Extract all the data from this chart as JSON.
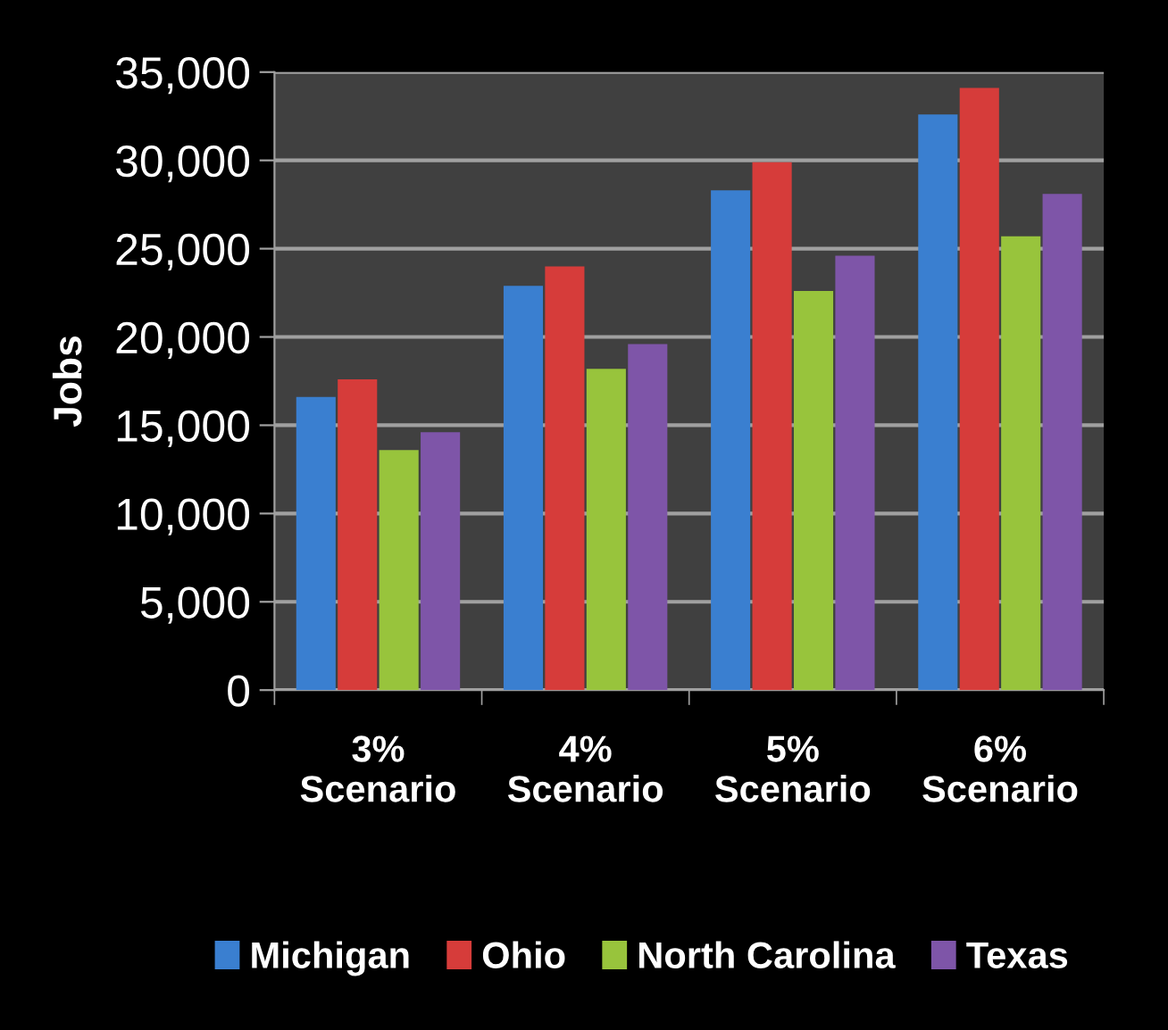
{
  "chart_data": {
    "type": "bar",
    "ylabel": "Jobs",
    "categories": [
      "3%\nScenario",
      "4%\nScenario",
      "5%\nScenario",
      "6%\nScenario"
    ],
    "series": [
      {
        "name": "Michigan",
        "color": "#3a7fd0",
        "values": [
          16600,
          22900,
          28300,
          32600
        ]
      },
      {
        "name": "Ohio",
        "color": "#d63c3a",
        "values": [
          17600,
          24000,
          29900,
          34100
        ]
      },
      {
        "name": "North Carolina",
        "color": "#98c43c",
        "values": [
          13600,
          18200,
          22600,
          25700
        ]
      },
      {
        "name": "Texas",
        "color": "#7e55a8",
        "values": [
          14600,
          19600,
          24600,
          28100
        ]
      }
    ],
    "ylim": [
      0,
      35000
    ],
    "yticks": [
      {
        "value": 0,
        "label": "0"
      },
      {
        "value": 5000,
        "label": "5,000"
      },
      {
        "value": 10000,
        "label": "10,000"
      },
      {
        "value": 15000,
        "label": "15,000"
      },
      {
        "value": 20000,
        "label": "20,000"
      },
      {
        "value": 25000,
        "label": "25,000"
      },
      {
        "value": 30000,
        "label": "30,000"
      },
      {
        "value": 35000,
        "label": "35,000"
      }
    ],
    "grid": "y",
    "legend": "bottom"
  }
}
